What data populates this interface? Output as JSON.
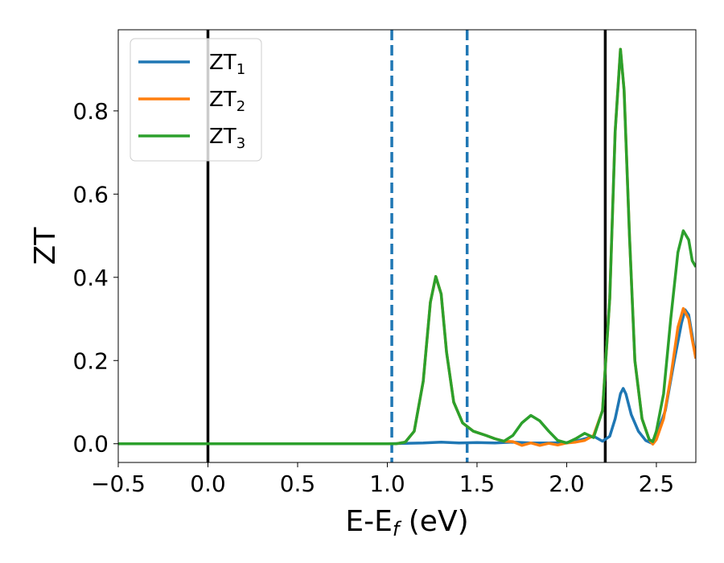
{
  "chart_data": {
    "type": "line",
    "xlabel": {
      "base": "E-E",
      "sub": "f",
      "suffix": " (eV)"
    },
    "ylabel": "ZT",
    "xlim": [
      -0.5,
      2.72
    ],
    "ylim": [
      -0.045,
      0.995
    ],
    "xticks": [
      -0.5,
      0.0,
      0.5,
      1.0,
      1.5,
      2.0,
      2.5
    ],
    "xtick_labels": [
      "−0.5",
      "0.0",
      "0.5",
      "1.0",
      "1.5",
      "2.0",
      "2.5"
    ],
    "yticks": [
      0.0,
      0.2,
      0.4,
      0.6,
      0.8
    ],
    "ytick_labels": [
      "0.0",
      "0.2",
      "0.4",
      "0.6",
      "0.8"
    ],
    "grid": false,
    "legend_position": "top-left",
    "vertical_lines": [
      {
        "x": 0.0,
        "style": "solid",
        "color": "#000000"
      },
      {
        "x": 2.215,
        "style": "solid",
        "color": "#000000"
      },
      {
        "x": 1.025,
        "style": "dashed",
        "color": "#1f77b4"
      },
      {
        "x": 1.445,
        "style": "dashed",
        "color": "#1f77b4"
      }
    ],
    "series": [
      {
        "name": "ZT",
        "name_sub": "1",
        "color": "#1f77b4",
        "points": [
          [
            -0.5,
            0
          ],
          [
            1.0,
            0
          ],
          [
            1.1,
            0.001
          ],
          [
            1.2,
            0.002
          ],
          [
            1.3,
            0.004
          ],
          [
            1.4,
            0.002
          ],
          [
            1.5,
            0.003
          ],
          [
            1.6,
            0.002
          ],
          [
            1.7,
            0.004
          ],
          [
            1.8,
            0.002
          ],
          [
            1.9,
            0.002
          ],
          [
            2.0,
            0.003
          ],
          [
            2.05,
            0.006
          ],
          [
            2.1,
            0.012
          ],
          [
            2.15,
            0.018
          ],
          [
            2.2,
            0.006
          ],
          [
            2.24,
            0.018
          ],
          [
            2.27,
            0.06
          ],
          [
            2.3,
            0.12
          ],
          [
            2.315,
            0.133
          ],
          [
            2.33,
            0.12
          ],
          [
            2.36,
            0.07
          ],
          [
            2.4,
            0.03
          ],
          [
            2.44,
            0.008
          ],
          [
            2.47,
            0.002
          ],
          [
            2.5,
            0.02
          ],
          [
            2.55,
            0.08
          ],
          [
            2.6,
            0.2
          ],
          [
            2.64,
            0.29
          ],
          [
            2.66,
            0.322
          ],
          [
            2.68,
            0.31
          ],
          [
            2.7,
            0.26
          ],
          [
            2.72,
            0.205
          ]
        ]
      },
      {
        "name": "ZT",
        "name_sub": "2",
        "color": "#ff7f0e",
        "points": [
          [
            -0.5,
            0
          ],
          [
            1.05,
            0
          ],
          [
            1.1,
            0.004
          ],
          [
            1.15,
            0.03
          ],
          [
            1.2,
            0.15
          ],
          [
            1.24,
            0.34
          ],
          [
            1.27,
            0.402
          ],
          [
            1.3,
            0.36
          ],
          [
            1.33,
            0.22
          ],
          [
            1.37,
            0.1
          ],
          [
            1.42,
            0.05
          ],
          [
            1.48,
            0.03
          ],
          [
            1.55,
            0.02
          ],
          [
            1.6,
            0.012
          ],
          [
            1.65,
            0.006
          ],
          [
            1.7,
            0.005
          ],
          [
            1.75,
            -0.004
          ],
          [
            1.8,
            0.002
          ],
          [
            1.85,
            -0.004
          ],
          [
            1.9,
            0.001
          ],
          [
            1.95,
            -0.003
          ],
          [
            2.0,
            0.002
          ],
          [
            2.05,
            0.004
          ],
          [
            2.1,
            0.008
          ],
          [
            2.15,
            0.02
          ],
          [
            2.2,
            0.08
          ],
          [
            2.24,
            0.35
          ],
          [
            2.27,
            0.75
          ],
          [
            2.3,
            0.948
          ],
          [
            2.32,
            0.85
          ],
          [
            2.35,
            0.5
          ],
          [
            2.38,
            0.2
          ],
          [
            2.42,
            0.06
          ],
          [
            2.46,
            0.01
          ],
          [
            2.48,
            -0.001
          ],
          [
            2.5,
            0.01
          ],
          [
            2.54,
            0.06
          ],
          [
            2.58,
            0.16
          ],
          [
            2.62,
            0.28
          ],
          [
            2.65,
            0.325
          ],
          [
            2.68,
            0.3
          ],
          [
            2.7,
            0.25
          ],
          [
            2.72,
            0.205
          ]
        ]
      },
      {
        "name": "ZT",
        "name_sub": "3",
        "color": "#2ca02c",
        "points": [
          [
            -0.5,
            0
          ],
          [
            1.05,
            0
          ],
          [
            1.1,
            0.004
          ],
          [
            1.15,
            0.03
          ],
          [
            1.2,
            0.15
          ],
          [
            1.24,
            0.34
          ],
          [
            1.27,
            0.402
          ],
          [
            1.3,
            0.36
          ],
          [
            1.33,
            0.22
          ],
          [
            1.37,
            0.1
          ],
          [
            1.42,
            0.05
          ],
          [
            1.48,
            0.03
          ],
          [
            1.55,
            0.02
          ],
          [
            1.6,
            0.012
          ],
          [
            1.65,
            0.006
          ],
          [
            1.7,
            0.02
          ],
          [
            1.75,
            0.05
          ],
          [
            1.8,
            0.068
          ],
          [
            1.85,
            0.055
          ],
          [
            1.9,
            0.03
          ],
          [
            1.95,
            0.008
          ],
          [
            2.0,
            0.002
          ],
          [
            2.05,
            0.012
          ],
          [
            2.1,
            0.025
          ],
          [
            2.15,
            0.015
          ],
          [
            2.2,
            0.08
          ],
          [
            2.24,
            0.35
          ],
          [
            2.27,
            0.75
          ],
          [
            2.3,
            0.948
          ],
          [
            2.32,
            0.85
          ],
          [
            2.35,
            0.5
          ],
          [
            2.38,
            0.2
          ],
          [
            2.42,
            0.06
          ],
          [
            2.46,
            0.01
          ],
          [
            2.48,
            0.005
          ],
          [
            2.5,
            0.03
          ],
          [
            2.54,
            0.12
          ],
          [
            2.58,
            0.3
          ],
          [
            2.62,
            0.46
          ],
          [
            2.65,
            0.512
          ],
          [
            2.68,
            0.49
          ],
          [
            2.7,
            0.44
          ],
          [
            2.72,
            0.425
          ]
        ]
      }
    ]
  }
}
